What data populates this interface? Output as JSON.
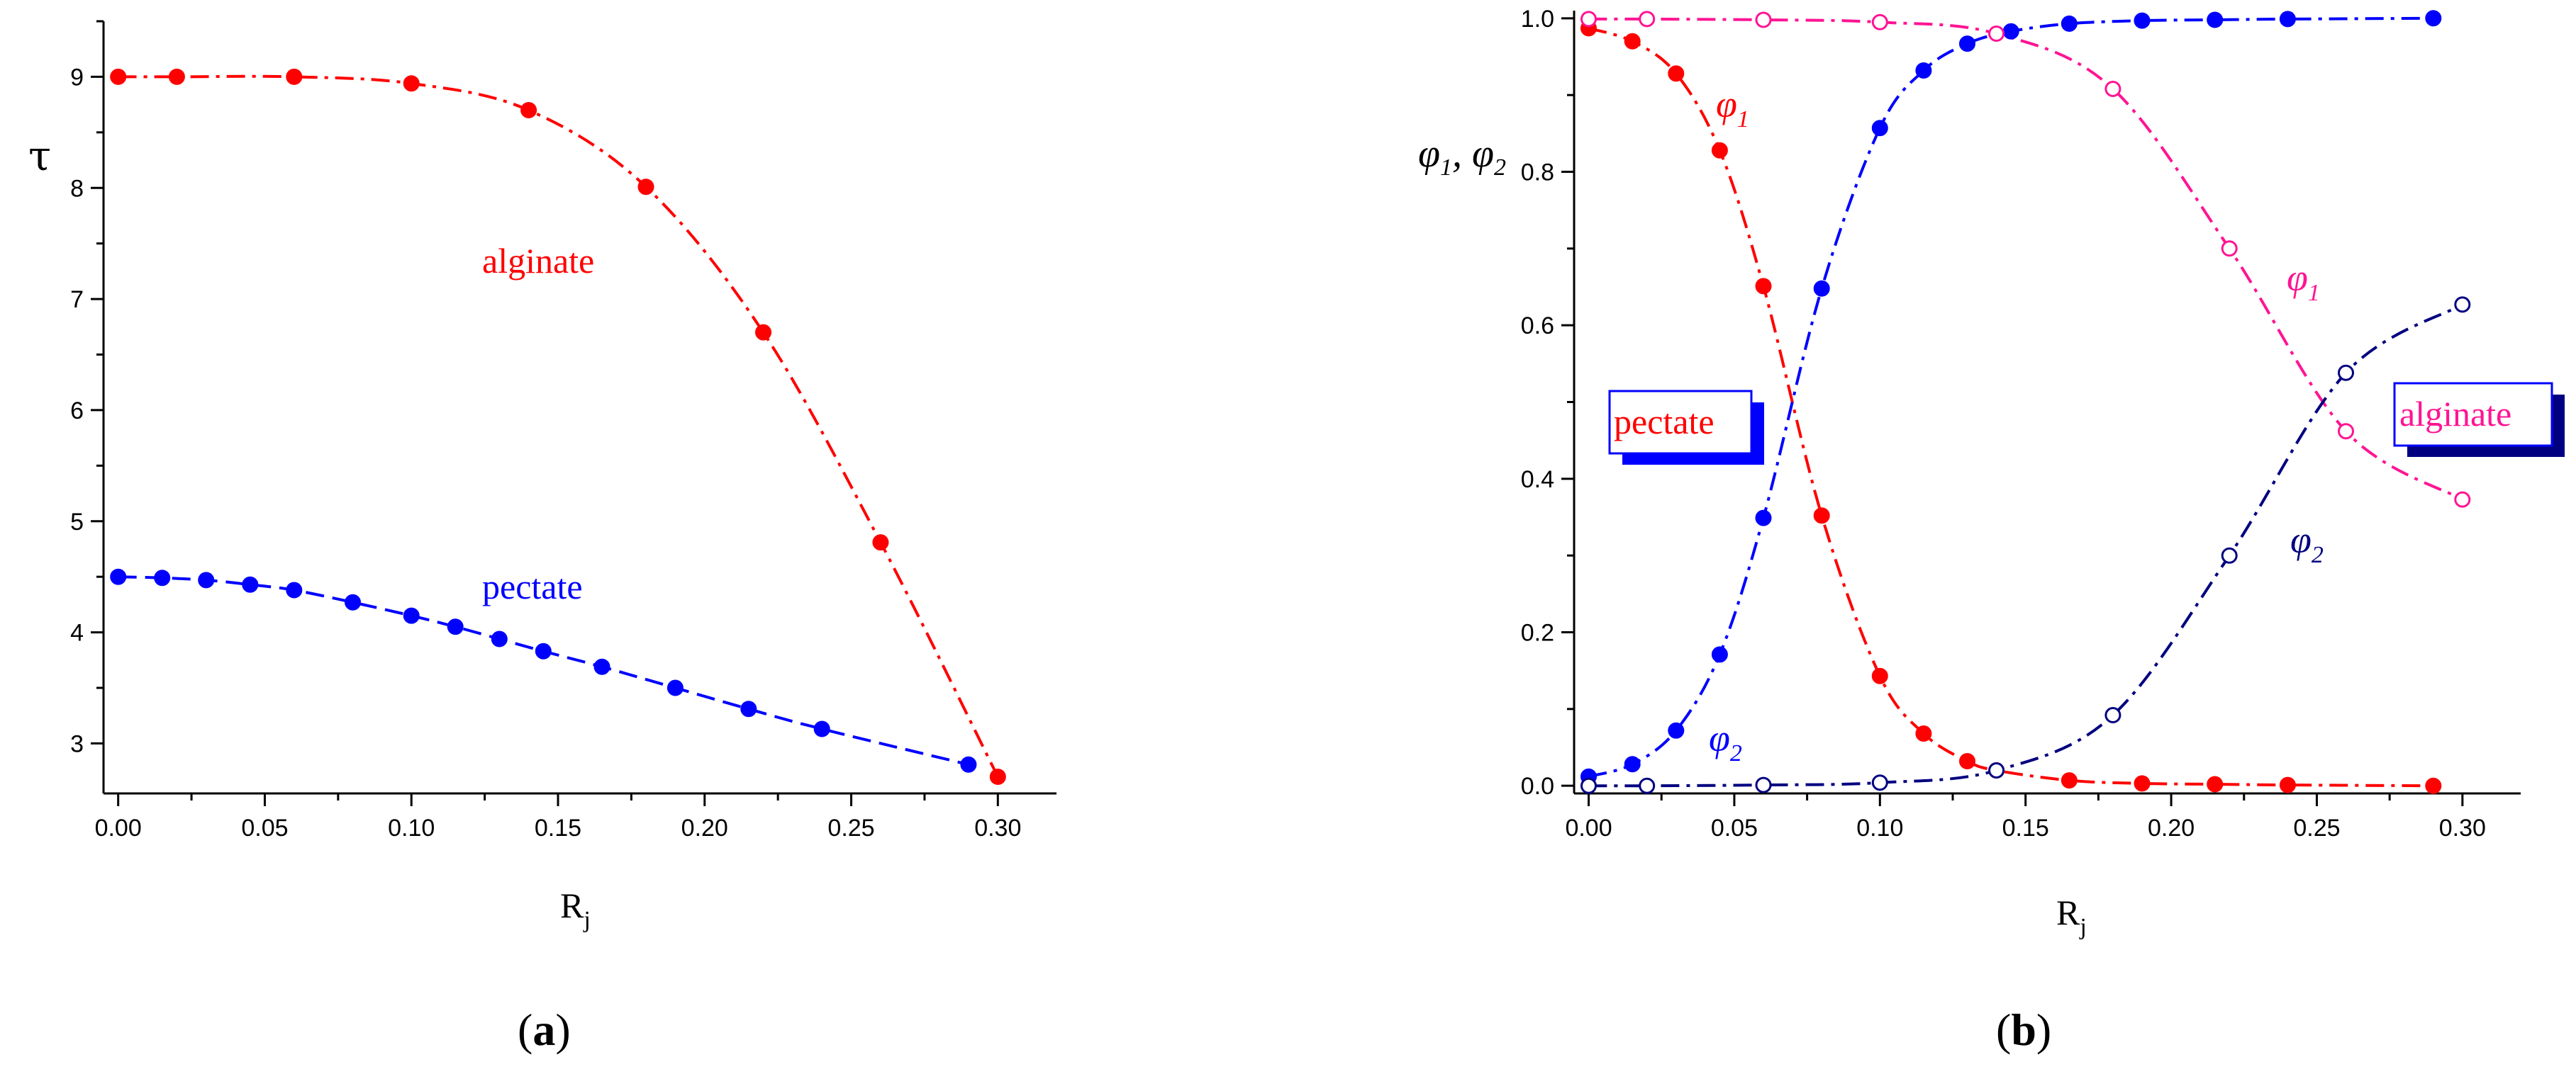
{
  "chart_data": [
    {
      "type": "line",
      "panel_label": "(a)",
      "panel_letter": "a",
      "xlabel": "R",
      "xlabel_sub": "j",
      "ylabel": "τ",
      "xlim": [
        -0.005,
        0.32
      ],
      "ylim": [
        2.55,
        9.5
      ],
      "x_ticks": [
        0.0,
        0.05,
        0.1,
        0.15,
        0.2,
        0.25,
        0.3
      ],
      "x_tick_labels": [
        "0.00",
        "0.05",
        "0.10",
        "0.15",
        "0.20",
        "0.25",
        "0.30"
      ],
      "y_ticks": [
        3,
        4,
        5,
        6,
        7,
        8,
        9
      ],
      "y_tick_labels": [
        "3",
        "4",
        "5",
        "6",
        "7",
        "8",
        "9"
      ],
      "grid": false,
      "series": [
        {
          "name": "alginate",
          "color": "#ff0000",
          "linestyle": "dash-dot",
          "marker": "filled-circle",
          "x": [
            0.0,
            0.02,
            0.06,
            0.1,
            0.14,
            0.18,
            0.22,
            0.26,
            0.3
          ],
          "y": [
            9.0,
            9.0,
            9.0,
            8.94,
            8.7,
            8.01,
            6.7,
            4.81,
            2.7
          ]
        },
        {
          "name": "pectate",
          "color": "#0000ff",
          "linestyle": "dash",
          "marker": "filled-circle",
          "x": [
            0.0,
            0.015,
            0.03,
            0.045,
            0.06,
            0.08,
            0.1,
            0.115,
            0.13,
            0.145,
            0.165,
            0.19,
            0.215,
            0.24,
            0.29
          ],
          "y": [
            4.5,
            4.49,
            4.47,
            4.43,
            4.38,
            4.27,
            4.15,
            4.05,
            3.94,
            3.83,
            3.69,
            3.5,
            3.31,
            3.13,
            2.81
          ]
        }
      ],
      "annotations": [
        {
          "text": "alginate",
          "color": "#ff0000"
        },
        {
          "text": "pectate",
          "color": "#0000ff"
        }
      ]
    },
    {
      "type": "line",
      "panel_label": "(b)",
      "panel_letter": "b",
      "xlabel": "R",
      "xlabel_sub": "j",
      "ylabel": "φ1, φ2",
      "xlim": [
        -0.005,
        0.32
      ],
      "ylim": [
        -0.01,
        1.01
      ],
      "x_ticks": [
        0.0,
        0.05,
        0.1,
        0.15,
        0.2,
        0.25,
        0.3
      ],
      "x_tick_labels": [
        "0.00",
        "0.05",
        "0.10",
        "0.15",
        "0.20",
        "0.25",
        "0.30"
      ],
      "y_ticks": [
        0.0,
        0.2,
        0.4,
        0.6,
        0.8,
        1.0
      ],
      "y_tick_labels": [
        "0.0",
        "0.2",
        "0.4",
        "0.6",
        "0.8",
        "1.0"
      ],
      "grid": false,
      "series": [
        {
          "name": "φ1",
          "group": "pectate",
          "color": "#ff0000",
          "linestyle": "dash-dot",
          "marker": "filled-circle",
          "x": [
            0.0,
            0.015,
            0.03,
            0.045,
            0.06,
            0.08,
            0.1,
            0.115,
            0.13,
            0.14,
            0.165,
            0.19,
            0.215,
            0.24,
            0.29
          ],
          "y": [
            0.987,
            0.97,
            0.928,
            0.828,
            0.651,
            0.352,
            0.143,
            0.068,
            0.032,
            0.02,
            0.007,
            0.003,
            0.002,
            0.001,
            0.0
          ]
        },
        {
          "name": "φ2",
          "group": "pectate",
          "color": "#0000ff",
          "linestyle": "dash-dot",
          "marker": "filled-circle",
          "x": [
            0.0,
            0.015,
            0.03,
            0.045,
            0.06,
            0.08,
            0.1,
            0.115,
            0.13,
            0.145,
            0.165,
            0.19,
            0.215,
            0.24,
            0.29
          ],
          "y": [
            0.012,
            0.028,
            0.072,
            0.171,
            0.349,
            0.648,
            0.857,
            0.932,
            0.967,
            0.983,
            0.993,
            0.997,
            0.998,
            0.999,
            1.0
          ]
        },
        {
          "name": "φ1",
          "group": "alginate",
          "color": "#ff1493",
          "linestyle": "dash-dot",
          "marker": "open-circle",
          "x": [
            0.0,
            0.02,
            0.06,
            0.1,
            0.14,
            0.18,
            0.22,
            0.26,
            0.3
          ],
          "y": [
            0.999,
            0.999,
            0.998,
            0.995,
            0.98,
            0.908,
            0.7,
            0.462,
            0.373
          ]
        },
        {
          "name": "φ2",
          "group": "alginate",
          "color": "#000080",
          "linestyle": "dash-dot",
          "marker": "open-circle",
          "x": [
            0.0,
            0.02,
            0.06,
            0.1,
            0.14,
            0.18,
            0.22,
            0.26,
            0.3
          ],
          "y": [
            0.0,
            0.0,
            0.001,
            0.004,
            0.02,
            0.092,
            0.3,
            0.538,
            0.627
          ]
        }
      ],
      "annotations": [
        {
          "text": "φ1",
          "color": "#ff0000"
        },
        {
          "text": "φ2",
          "color": "#0000ff"
        },
        {
          "text": "φ1",
          "color": "#ff1493"
        },
        {
          "text": "φ2",
          "color": "#000080"
        },
        {
          "text": "pectate",
          "box": true,
          "color": "#ff0000",
          "box_border": "#0000ff",
          "shadow": "#0000ff"
        },
        {
          "text": "alginate",
          "box": true,
          "color": "#ff1493",
          "box_border": "#0000ff",
          "shadow": "#000080"
        }
      ]
    }
  ]
}
